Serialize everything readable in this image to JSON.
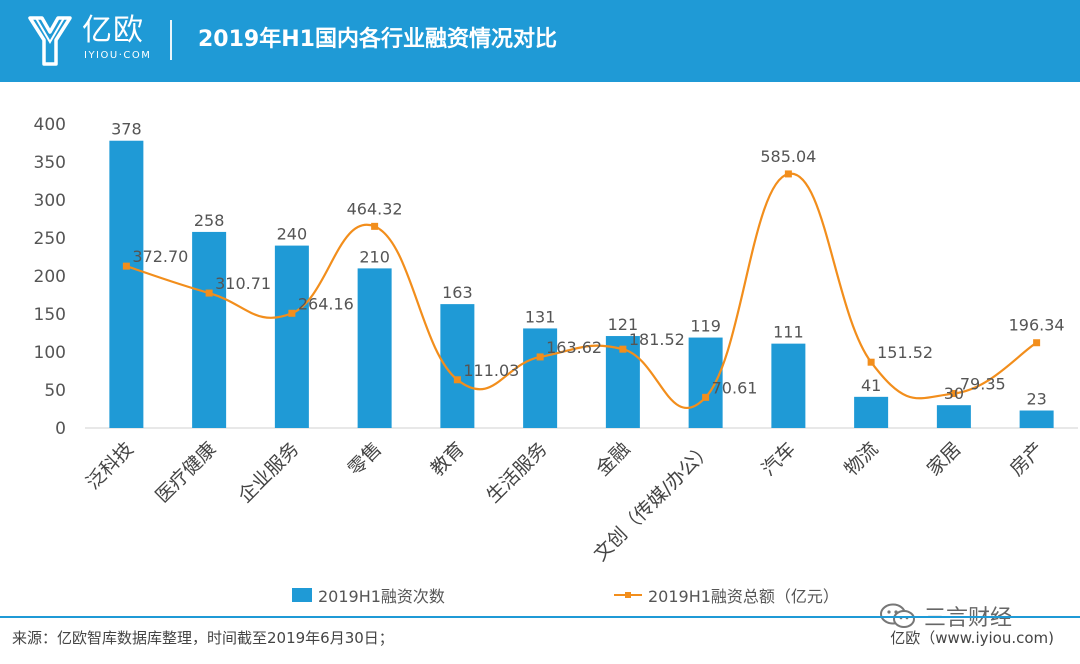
{
  "header": {
    "logo_text": "亿欧",
    "logo_sub": "IYIOU·COM",
    "title": "2019年H1国内各行业融资情况对比"
  },
  "colors": {
    "header": "#1f9ad6",
    "bar": "#1f9ad6",
    "line": "#f28e1c",
    "grid": "#d9d9d9"
  },
  "chart_data": {
    "type": "bar",
    "title": "2019年H1国内各行业融资情况对比",
    "categories": [
      "泛科技",
      "医疗健康",
      "企业服务",
      "零售",
      "教育",
      "生活服务",
      "金融",
      "文创（传媒/办公）",
      "汽车",
      "物流",
      "家居",
      "房产"
    ],
    "series": [
      {
        "name": "2019H1融资次数",
        "type": "bar",
        "values": [
          378,
          258,
          240,
          210,
          163,
          131,
          121,
          119,
          111,
          41,
          30,
          23
        ]
      },
      {
        "name": "2019H1融资总额（亿元）",
        "type": "line",
        "values": [
          372.7,
          310.71,
          264.16,
          464.32,
          111.03,
          163.62,
          181.52,
          70.61,
          585.04,
          151.52,
          79.35,
          196.34
        ],
        "labels": [
          "372.70",
          "310.71",
          "264.16",
          "464.32",
          "111.03",
          "163.62",
          "181.52",
          "70.61",
          "585.04",
          "151.52",
          "79.35",
          "196.34"
        ]
      }
    ],
    "y_ticks": [
      "0",
      "50",
      "100",
      "150",
      "200",
      "250",
      "300",
      "350",
      "400"
    ],
    "ylim": [
      0,
      400
    ],
    "grid": false,
    "legend_position": "bottom"
  },
  "footer": {
    "source": "来源：亿欧智库数据库整理，时间截至2019年6月30日；",
    "credit": "亿欧（www.iyiou.com)",
    "wechat_name": "三言财经"
  }
}
